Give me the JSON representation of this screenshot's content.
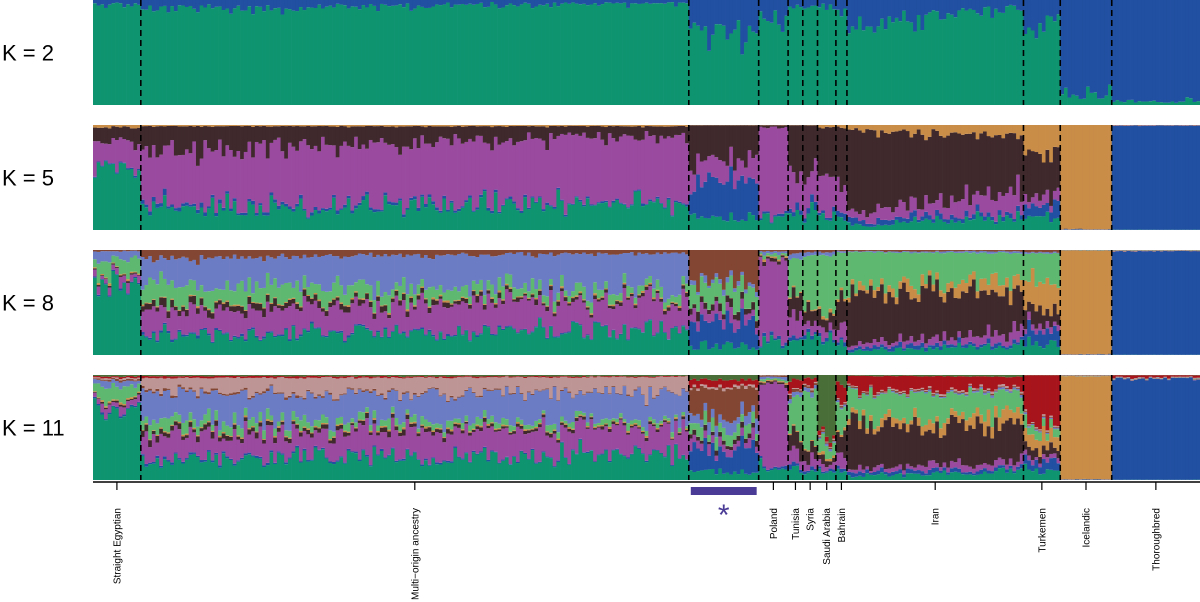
{
  "chart_data": {
    "type": "bar",
    "stacked": true,
    "normalized": true,
    "ylim": [
      0,
      1
    ],
    "cluster_colors": [
      "#0f9470",
      "#214fa1",
      "#9a4a9f",
      "#3f292c",
      "#c98d48",
      "#5fb870",
      "#6c7cc4",
      "#824632",
      "#be9595",
      "#a8141b",
      "#4a6e38"
    ],
    "panels": [
      {
        "label": "K = 2",
        "k": 2
      },
      {
        "label": "K = 5",
        "k": 5
      },
      {
        "label": "K = 8",
        "k": 8
      },
      {
        "label": "K = 11",
        "k": 11
      }
    ],
    "populations": [
      {
        "name": "Straight Egyptian",
        "n": 13
      },
      {
        "name": "Multi−origin ancestry",
        "n": 149
      },
      {
        "name": "",
        "n": 19,
        "marker": "*"
      },
      {
        "name": "Poland",
        "n": 8
      },
      {
        "name": "Tunisia",
        "n": 4
      },
      {
        "name": "Syria",
        "n": 4
      },
      {
        "name": "Saudi Arabia",
        "n": 5
      },
      {
        "name": "Bahrain",
        "n": 3
      },
      {
        "name": "Iran",
        "n": 48
      },
      {
        "name": "Turkemen",
        "n": 10
      },
      {
        "name": "Icelandic",
        "n": 14
      },
      {
        "name": "Thoroughbred",
        "n": 24
      }
    ],
    "profiles": {
      "2": [
        [
          0.96,
          0.04
        ],
        [
          0.95,
          0.05
        ],
        [
          0.68,
          0.32
        ],
        [
          0.82,
          0.18
        ],
        [
          0.95,
          0.05
        ],
        [
          0.95,
          0.05
        ],
        [
          0.93,
          0.07
        ],
        [
          0.9,
          0.1
        ],
        [
          0.84,
          0.16
        ],
        [
          0.78,
          0.22
        ],
        [
          0.1,
          0.9
        ],
        [
          0.03,
          0.97
        ]
      ],
      "5": [
        [
          0.6,
          0.01,
          0.25,
          0.12,
          0.02
        ],
        [
          0.22,
          0.02,
          0.6,
          0.15,
          0.01
        ],
        [
          0.12,
          0.34,
          0.2,
          0.34,
          0.0
        ],
        [
          0.12,
          0.02,
          0.84,
          0.02,
          0.0
        ],
        [
          0.15,
          0.05,
          0.3,
          0.5,
          0.0
        ],
        [
          0.15,
          0.05,
          0.3,
          0.5,
          0.0
        ],
        [
          0.12,
          0.03,
          0.35,
          0.48,
          0.02
        ],
        [
          0.13,
          0.05,
          0.35,
          0.45,
          0.02
        ],
        [
          0.08,
          0.04,
          0.14,
          0.66,
          0.08
        ],
        [
          0.13,
          0.12,
          0.1,
          0.37,
          0.28
        ],
        [
          0.0,
          0.0,
          0.0,
          0.0,
          1.0
        ],
        [
          0.0,
          1.0,
          0.0,
          0.0,
          0.0
        ]
      ],
      "8": [
        [
          0.68,
          0.01,
          0.06,
          0.01,
          0.01,
          0.14,
          0.08,
          0.01
        ],
        [
          0.22,
          0.01,
          0.25,
          0.04,
          0.01,
          0.12,
          0.3,
          0.05
        ],
        [
          0.08,
          0.24,
          0.1,
          0.06,
          0.0,
          0.18,
          0.04,
          0.3
        ],
        [
          0.1,
          0.02,
          0.8,
          0.02,
          0.01,
          0.02,
          0.02,
          0.01
        ],
        [
          0.12,
          0.03,
          0.2,
          0.2,
          0.01,
          0.35,
          0.05,
          0.04
        ],
        [
          0.14,
          0.03,
          0.1,
          0.12,
          0.01,
          0.55,
          0.03,
          0.02
        ],
        [
          0.12,
          0.02,
          0.08,
          0.1,
          0.02,
          0.62,
          0.02,
          0.02
        ],
        [
          0.12,
          0.03,
          0.15,
          0.25,
          0.02,
          0.4,
          0.02,
          0.01
        ],
        [
          0.06,
          0.03,
          0.06,
          0.45,
          0.08,
          0.3,
          0.01,
          0.01
        ],
        [
          0.12,
          0.12,
          0.06,
          0.14,
          0.28,
          0.25,
          0.01,
          0.02
        ],
        [
          0.0,
          0.0,
          0.0,
          0.0,
          1.0,
          0.0,
          0.0,
          0.0
        ],
        [
          0.0,
          1.0,
          0.0,
          0.0,
          0.0,
          0.0,
          0.0,
          0.0
        ]
      ],
      "11": [
        [
          0.72,
          0.01,
          0.05,
          0.01,
          0.01,
          0.12,
          0.04,
          0.01,
          0.01,
          0.01,
          0.01
        ],
        [
          0.22,
          0.01,
          0.24,
          0.03,
          0.01,
          0.06,
          0.26,
          0.01,
          0.14,
          0.01,
          0.01
        ],
        [
          0.08,
          0.22,
          0.08,
          0.04,
          0.0,
          0.1,
          0.1,
          0.26,
          0.02,
          0.06,
          0.04
        ],
        [
          0.12,
          0.02,
          0.78,
          0.02,
          0.01,
          0.02,
          0.02,
          0.01,
          0.0,
          0.0,
          0.0
        ],
        [
          0.12,
          0.03,
          0.12,
          0.15,
          0.01,
          0.35,
          0.04,
          0.03,
          0.01,
          0.1,
          0.04
        ],
        [
          0.1,
          0.03,
          0.08,
          0.1,
          0.01,
          0.5,
          0.03,
          0.02,
          0.01,
          0.08,
          0.04
        ],
        [
          0.08,
          0.02,
          0.05,
          0.06,
          0.02,
          0.12,
          0.02,
          0.01,
          0.01,
          0.04,
          0.57
        ],
        [
          0.1,
          0.03,
          0.1,
          0.2,
          0.02,
          0.25,
          0.02,
          0.01,
          0.01,
          0.16,
          0.1
        ],
        [
          0.06,
          0.03,
          0.05,
          0.4,
          0.08,
          0.22,
          0.01,
          0.01,
          0.01,
          0.12,
          0.01
        ],
        [
          0.1,
          0.1,
          0.04,
          0.08,
          0.15,
          0.08,
          0.01,
          0.01,
          0.01,
          0.42,
          0.0
        ],
        [
          0.0,
          0.0,
          0.0,
          0.0,
          1.0,
          0.0,
          0.0,
          0.0,
          0.0,
          0.0,
          0.0
        ],
        [
          0.0,
          0.98,
          0.0,
          0.0,
          0.0,
          0.0,
          0.0,
          0.0,
          0.0,
          0.02,
          0.0
        ]
      ]
    },
    "highlight": {
      "group_index": 2,
      "marker": "*",
      "color": "#4a3c96"
    },
    "grid": false,
    "legend": "none"
  }
}
